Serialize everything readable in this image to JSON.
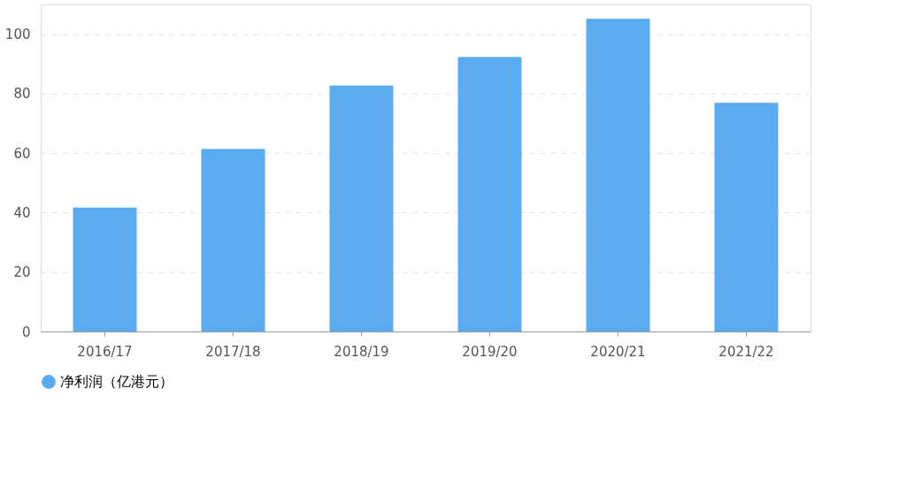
{
  "chart_data": {
    "type": "bar",
    "categories": [
      "2016/17",
      "2017/18",
      "2018/19",
      "2019/20",
      "2020/21",
      "2021/22"
    ],
    "series": [
      {
        "name": "净利润（亿港元）",
        "color": "#5aabf0",
        "values": [
          41.7,
          61.4,
          82.7,
          92.3,
          105.2,
          76.9
        ]
      }
    ],
    "ylim": [
      0,
      110
    ],
    "yticks": [
      0,
      20,
      40,
      60,
      80,
      100
    ],
    "grid": "y",
    "legend": "bottom"
  }
}
